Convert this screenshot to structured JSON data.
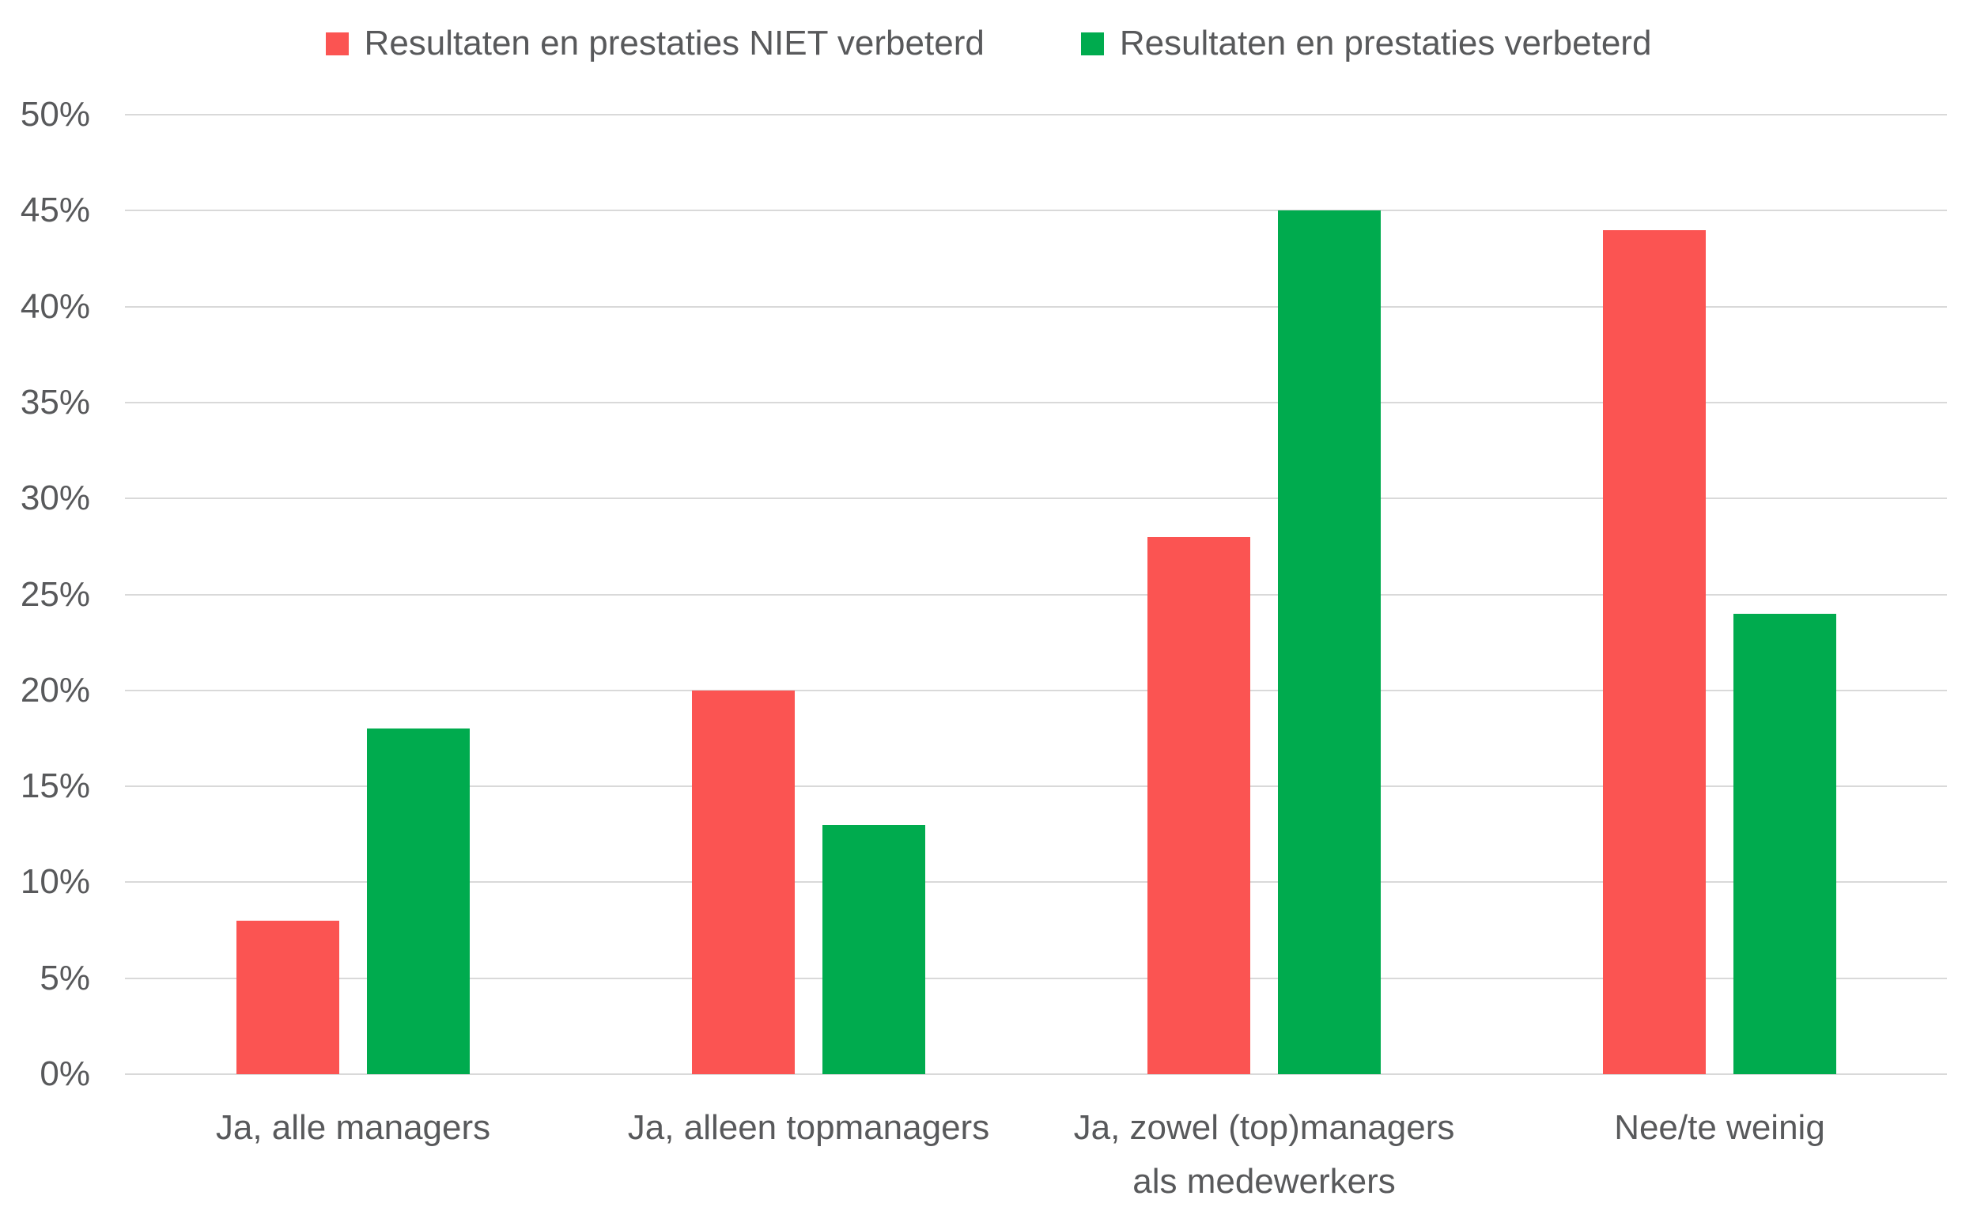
{
  "chart_data": {
    "type": "bar",
    "title": "",
    "categories": [
      "Ja, alle managers",
      "Ja, alleen topmanagers",
      "Ja, zowel (top)managers als medewerkers",
      "Nee/te weinig"
    ],
    "series": [
      {
        "name": "Resultaten en prestaties NIET verbeterd",
        "color": "#FB5452",
        "values": [
          8,
          20,
          28,
          44
        ]
      },
      {
        "name": "Resultaten en prestaties verbeterd",
        "color": "#00AB4E",
        "values": [
          18,
          13,
          45,
          24
        ]
      }
    ],
    "xlabel": "",
    "ylabel": "",
    "ylim": [
      0,
      50
    ],
    "ytick_step": 5,
    "ytick_labels": [
      "0%",
      "5%",
      "10%",
      "15%",
      "20%",
      "25%",
      "30%",
      "35%",
      "40%",
      "45%",
      "50%"
    ],
    "grid": true,
    "legend_position": "top",
    "colors": {
      "text": "#58595B",
      "gridline": "#D9D9D9",
      "background": "#FFFFFF"
    }
  }
}
